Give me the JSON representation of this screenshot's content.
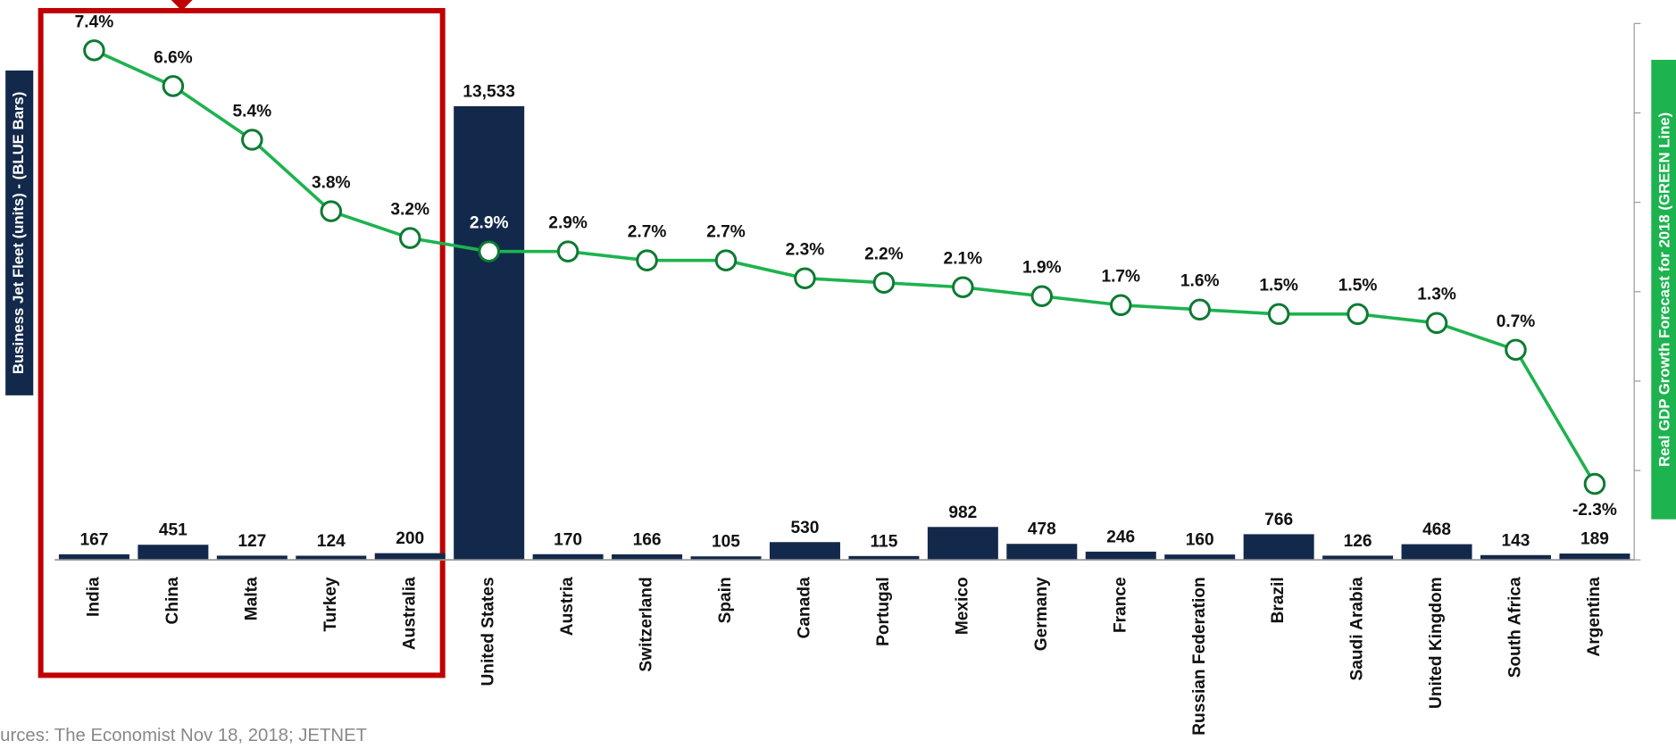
{
  "chart_data": {
    "type": "bar-line",
    "categories": [
      "India",
      "China",
      "Malta",
      "Turkey",
      "Australia",
      "United States",
      "Austria",
      "Switzerland",
      "Spain",
      "Canada",
      "Portugal",
      "Mexico",
      "Germany",
      "France",
      "Russian Federation",
      "Brazil",
      "Saudi Arabia",
      "United Kingdom",
      "South Africa",
      "Argentina"
    ],
    "series": [
      {
        "name": "Business Jet Fleet",
        "type": "bar",
        "color": "#13294b",
        "values": [
          167,
          451,
          127,
          124,
          200,
          13533,
          170,
          166,
          105,
          530,
          115,
          982,
          478,
          246,
          160,
          766,
          126,
          468,
          143,
          189
        ],
        "value_labels": [
          "167",
          "451",
          "127",
          "124",
          "200",
          "13,533",
          "170",
          "166",
          "105",
          "530",
          "115",
          "982",
          "478",
          "246",
          "160",
          "766",
          "126",
          "468",
          "143",
          "189"
        ]
      },
      {
        "name": "Real GDP Growth Forecast for 2018",
        "type": "line",
        "axis": "y2",
        "color": "#1db34f",
        "values": [
          7.4,
          6.6,
          5.4,
          3.8,
          3.2,
          2.9,
          2.9,
          2.7,
          2.7,
          2.3,
          2.2,
          2.1,
          1.9,
          1.7,
          1.6,
          1.5,
          1.5,
          1.3,
          0.7,
          -2.3
        ],
        "value_labels": [
          "7.4%",
          "6.6%",
          "5.4%",
          "3.8%",
          "3.2%",
          "2.9%",
          "2.9%",
          "2.7%",
          "2.7%",
          "2.3%",
          "2.2%",
          "2.1%",
          "1.9%",
          "1.7%",
          "1.6%",
          "1.5%",
          "1.5%",
          "1.3%",
          "0.7%",
          "-2.3%"
        ]
      }
    ],
    "y_label": "Business Jet Fleet (units) - (BLUE Bars)",
    "y2_label": "Real GDP Growth Forecast for 2018 (GREEN Line)",
    "ylim": [
      0,
      16000
    ],
    "y2lim": [
      -4,
      8
    ],
    "y2ticks": [
      -4,
      -2,
      0,
      2,
      4,
      6,
      8
    ],
    "source": "urces: The Economist Nov 18, 2018; JETNET"
  }
}
